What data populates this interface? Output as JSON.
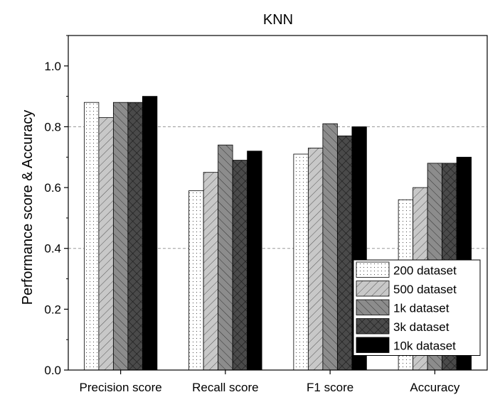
{
  "chart_data": {
    "type": "bar",
    "title": "KNN",
    "xlabel": "",
    "ylabel": "Performance score & Accuracy",
    "categories": [
      "Precision score",
      "Recall score",
      "F1 score",
      "Accuracy"
    ],
    "ylim": [
      0,
      1.1
    ],
    "yticks": [
      "0.0",
      "0.2",
      "0.4",
      "0.6",
      "0.8",
      "1.0"
    ],
    "grid": "horizontal dashed at 0.4 and 0.8",
    "legend_position": "bottom-right",
    "series": [
      {
        "name": "200 dataset",
        "values": [
          0.88,
          0.59,
          0.71,
          0.56
        ],
        "fill": "#ffffff",
        "pattern": "dots"
      },
      {
        "name": "500 dataset",
        "values": [
          0.83,
          0.65,
          0.73,
          0.6
        ],
        "fill": "#c8c8c8",
        "pattern": "diag-right"
      },
      {
        "name": "1k dataset",
        "values": [
          0.88,
          0.74,
          0.81,
          0.68
        ],
        "fill": "#8c8c8c",
        "pattern": "diag-left"
      },
      {
        "name": "3k dataset",
        "values": [
          0.88,
          0.69,
          0.77,
          0.68
        ],
        "fill": "#4a4a4a",
        "pattern": "cross"
      },
      {
        "name": "10k dataset",
        "values": [
          0.9,
          0.72,
          0.8,
          0.7
        ],
        "fill": "#000000",
        "pattern": "solid"
      }
    ]
  }
}
